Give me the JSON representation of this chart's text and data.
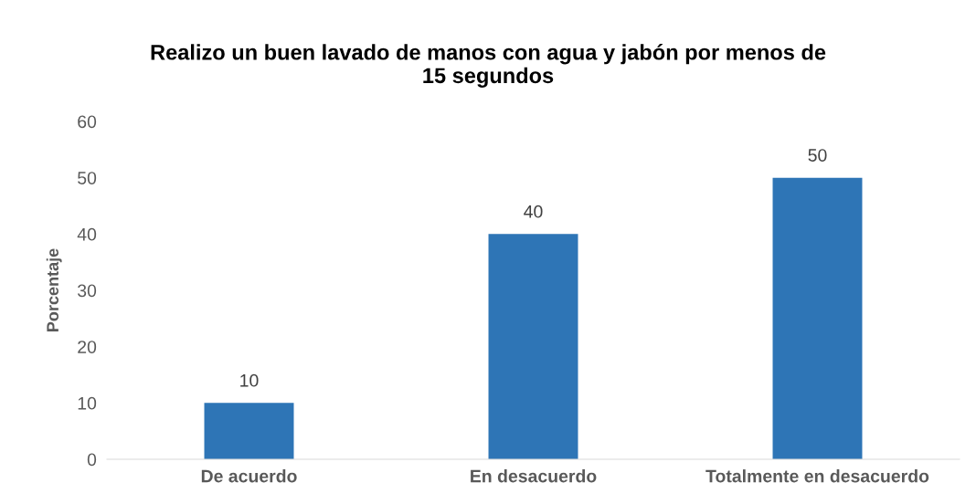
{
  "chart_data": {
    "type": "bar",
    "title": "Realizo un buen lavado de manos con agua y jabón por menos de\n15 segundos",
    "ylabel": "Porcentaje",
    "categories": [
      "De acuerdo",
      "En desacuerdo",
      "Totalmente en desacuerdo"
    ],
    "values": [
      10,
      40,
      50
    ],
    "color": "#2e75b6",
    "ylim": [
      0,
      60
    ],
    "yticks": [
      0,
      10,
      20,
      30,
      40,
      50,
      60
    ],
    "grid": false,
    "data_labels": true
  }
}
